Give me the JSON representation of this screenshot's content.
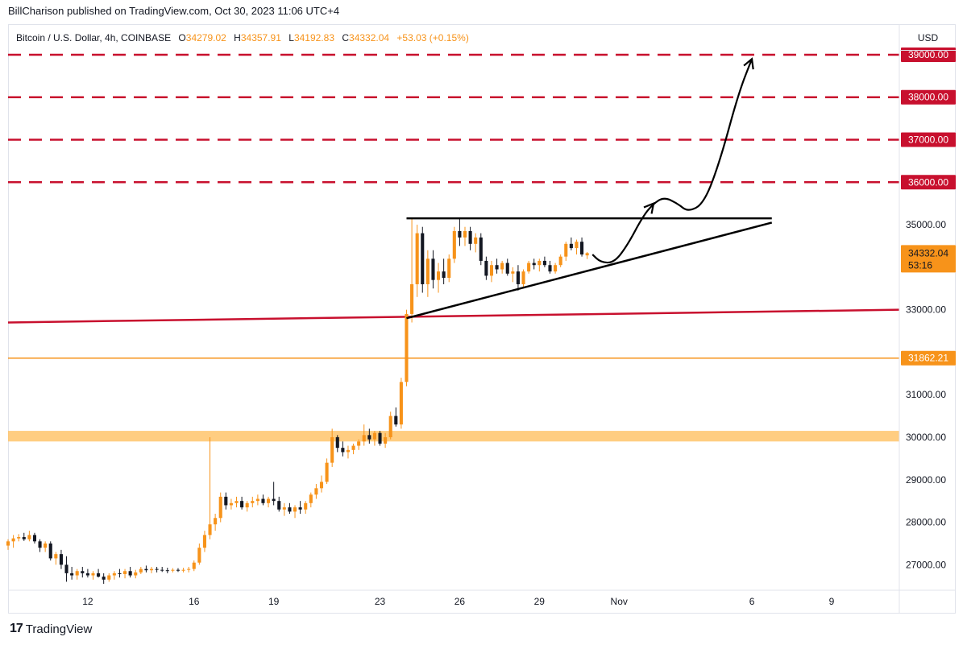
{
  "publisher_line": "BillCharison published on TradingView.com, Oct 30, 2023 11:06 UTC+4",
  "legend": {
    "symbol": "Bitcoin / U.S. Dollar, 4h, COINBASE",
    "open_label": "O",
    "open": "34279.02",
    "high_label": "H",
    "high": "34357.91",
    "low_label": "L",
    "low": "34192.83",
    "close_label": "C",
    "close": "34332.04",
    "change": "+53.03 (+0.15%)"
  },
  "currency": "USD",
  "footer": {
    "logo": "17",
    "brand": "TradingView"
  },
  "chart_data": {
    "type": "candlestick",
    "symbol": "BTCUSD",
    "timeframe": "4h",
    "y_axis_ticks": [
      27000,
      28000,
      29000,
      30000,
      31000,
      33000,
      35000
    ],
    "y_axis_label_format": "0.00",
    "ylim": [
      26400,
      39700
    ],
    "x_axis_ticks": [
      {
        "label": "12",
        "day": 12
      },
      {
        "label": "16",
        "day": 16
      },
      {
        "label": "19",
        "day": 19
      },
      {
        "label": "23",
        "day": 23
      },
      {
        "label": "26",
        "day": 26
      },
      {
        "label": "29",
        "day": 29
      },
      {
        "label": "Nov",
        "day": 32
      },
      {
        "label": "6",
        "day": 37
      },
      {
        "label": "9",
        "day": 40
      }
    ],
    "xlim_day": [
      9.0,
      42.55
    ],
    "last_price": {
      "value": 34332.04,
      "label": "34332.04",
      "countdown": "53:16",
      "color": "#f7931a"
    },
    "price_labels": [
      {
        "value": 39000,
        "label": "39000.00",
        "color": "#c8102e"
      },
      {
        "value": 38000,
        "label": "38000.00",
        "color": "#c8102e"
      },
      {
        "value": 37000,
        "label": "37000.00",
        "color": "#c8102e"
      },
      {
        "value": 36000,
        "label": "36000.00",
        "color": "#c8102e"
      },
      {
        "value": 31862.21,
        "label": "31862.21",
        "color": "#f7931a"
      }
    ],
    "horizontal_dashed_levels": [
      39000,
      38000,
      37000,
      36000
    ],
    "horizontal_line_orange": 31862.21,
    "support_zone": [
      29900,
      30150
    ],
    "red_trendline": {
      "from": [
        9.0,
        32700
      ],
      "to": [
        42.55,
        33000
      ]
    },
    "triangle": {
      "top": {
        "from": [
          24.0,
          35150
        ],
        "to": [
          37.75,
          35150
        ]
      },
      "bottom": {
        "from": [
          24.0,
          32800
        ],
        "to": [
          37.75,
          35050
        ]
      }
    },
    "projection_path": [
      [
        31.0,
        34300
      ],
      [
        31.3,
        34120
      ],
      [
        31.8,
        34100
      ],
      [
        32.3,
        34500
      ],
      [
        32.9,
        35200
      ],
      [
        33.3,
        35500
      ],
      [
        33.7,
        35650
      ],
      [
        34.2,
        35500
      ],
      [
        34.6,
        35300
      ],
      [
        35.2,
        35500
      ],
      [
        35.8,
        36500
      ],
      [
        36.5,
        38100
      ],
      [
        37.0,
        38900
      ]
    ],
    "candles": [
      {
        "d": 9.0,
        "o": 27450,
        "h": 27600,
        "l": 27350,
        "c": 27550
      },
      {
        "d": 9.2,
        "o": 27550,
        "h": 27700,
        "l": 27400,
        "c": 27620
      },
      {
        "d": 9.4,
        "o": 27620,
        "h": 27720,
        "l": 27550,
        "c": 27650
      },
      {
        "d": 9.6,
        "o": 27650,
        "h": 27750,
        "l": 27560,
        "c": 27600
      },
      {
        "d": 9.8,
        "o": 27600,
        "h": 27800,
        "l": 27550,
        "c": 27700
      },
      {
        "d": 10.0,
        "o": 27700,
        "h": 27750,
        "l": 27500,
        "c": 27550
      },
      {
        "d": 10.2,
        "o": 27550,
        "h": 27600,
        "l": 27300,
        "c": 27400
      },
      {
        "d": 10.4,
        "o": 27400,
        "h": 27550,
        "l": 27300,
        "c": 27500
      },
      {
        "d": 10.6,
        "o": 27500,
        "h": 27550,
        "l": 27100,
        "c": 27150
      },
      {
        "d": 10.8,
        "o": 27150,
        "h": 27300,
        "l": 27000,
        "c": 27250
      },
      {
        "d": 11.0,
        "o": 27250,
        "h": 27350,
        "l": 26900,
        "c": 27000
      },
      {
        "d": 11.2,
        "o": 27000,
        "h": 27200,
        "l": 26600,
        "c": 26800
      },
      {
        "d": 11.4,
        "o": 26800,
        "h": 26950,
        "l": 26650,
        "c": 26750
      },
      {
        "d": 11.6,
        "o": 26750,
        "h": 26900,
        "l": 26650,
        "c": 26850
      },
      {
        "d": 11.8,
        "o": 26850,
        "h": 26950,
        "l": 26700,
        "c": 26800
      },
      {
        "d": 12.0,
        "o": 26800,
        "h": 26900,
        "l": 26700,
        "c": 26750
      },
      {
        "d": 12.2,
        "o": 26750,
        "h": 26850,
        "l": 26650,
        "c": 26800
      },
      {
        "d": 12.4,
        "o": 26800,
        "h": 26900,
        "l": 26700,
        "c": 26720
      },
      {
        "d": 12.6,
        "o": 26720,
        "h": 26800,
        "l": 26550,
        "c": 26650
      },
      {
        "d": 12.8,
        "o": 26650,
        "h": 26800,
        "l": 26600,
        "c": 26750
      },
      {
        "d": 13.0,
        "o": 26750,
        "h": 26850,
        "l": 26650,
        "c": 26800
      },
      {
        "d": 13.2,
        "o": 26800,
        "h": 26900,
        "l": 26700,
        "c": 26780
      },
      {
        "d": 13.4,
        "o": 26780,
        "h": 26900,
        "l": 26680,
        "c": 26850
      },
      {
        "d": 13.6,
        "o": 26850,
        "h": 26950,
        "l": 26700,
        "c": 26750
      },
      {
        "d": 13.8,
        "o": 26750,
        "h": 26880,
        "l": 26680,
        "c": 26820
      },
      {
        "d": 14.0,
        "o": 26820,
        "h": 26950,
        "l": 26780,
        "c": 26900
      },
      {
        "d": 14.2,
        "o": 26900,
        "h": 26980,
        "l": 26820,
        "c": 26870
      },
      {
        "d": 14.4,
        "o": 26870,
        "h": 26950,
        "l": 26800,
        "c": 26900
      },
      {
        "d": 14.6,
        "o": 26900,
        "h": 26950,
        "l": 26820,
        "c": 26880
      },
      {
        "d": 14.8,
        "o": 26880,
        "h": 26950,
        "l": 26830,
        "c": 26870
      },
      {
        "d": 15.0,
        "o": 26870,
        "h": 26930,
        "l": 26800,
        "c": 26860
      },
      {
        "d": 15.2,
        "o": 26860,
        "h": 26920,
        "l": 26820,
        "c": 26880
      },
      {
        "d": 15.4,
        "o": 26880,
        "h": 26920,
        "l": 26830,
        "c": 26860
      },
      {
        "d": 15.6,
        "o": 26860,
        "h": 26930,
        "l": 26820,
        "c": 26880
      },
      {
        "d": 15.8,
        "o": 26880,
        "h": 26950,
        "l": 26820,
        "c": 26900
      },
      {
        "d": 16.0,
        "o": 26900,
        "h": 27100,
        "l": 26850,
        "c": 27050
      },
      {
        "d": 16.2,
        "o": 27050,
        "h": 27500,
        "l": 27000,
        "c": 27400
      },
      {
        "d": 16.4,
        "o": 27400,
        "h": 27800,
        "l": 27300,
        "c": 27700
      },
      {
        "d": 16.6,
        "o": 27700,
        "h": 30000,
        "l": 27600,
        "c": 27950
      },
      {
        "d": 16.8,
        "o": 27950,
        "h": 28200,
        "l": 27800,
        "c": 28100
      },
      {
        "d": 17.0,
        "o": 28100,
        "h": 28700,
        "l": 28000,
        "c": 28600
      },
      {
        "d": 17.2,
        "o": 28600,
        "h": 28700,
        "l": 28300,
        "c": 28400
      },
      {
        "d": 17.4,
        "o": 28400,
        "h": 28550,
        "l": 28300,
        "c": 28450
      },
      {
        "d": 17.6,
        "o": 28450,
        "h": 28600,
        "l": 28350,
        "c": 28500
      },
      {
        "d": 17.8,
        "o": 28500,
        "h": 28600,
        "l": 28300,
        "c": 28350
      },
      {
        "d": 18.0,
        "o": 28350,
        "h": 28500,
        "l": 28250,
        "c": 28450
      },
      {
        "d": 18.2,
        "o": 28450,
        "h": 28600,
        "l": 28350,
        "c": 28500
      },
      {
        "d": 18.4,
        "o": 28500,
        "h": 28650,
        "l": 28400,
        "c": 28550
      },
      {
        "d": 18.6,
        "o": 28550,
        "h": 28650,
        "l": 28400,
        "c": 28450
      },
      {
        "d": 18.8,
        "o": 28450,
        "h": 28600,
        "l": 28350,
        "c": 28550
      },
      {
        "d": 19.0,
        "o": 28550,
        "h": 28950,
        "l": 28400,
        "c": 28500
      },
      {
        "d": 19.2,
        "o": 28500,
        "h": 28600,
        "l": 28250,
        "c": 28300
      },
      {
        "d": 19.4,
        "o": 28300,
        "h": 28450,
        "l": 28150,
        "c": 28350
      },
      {
        "d": 19.6,
        "o": 28350,
        "h": 28450,
        "l": 28200,
        "c": 28250
      },
      {
        "d": 19.8,
        "o": 28250,
        "h": 28400,
        "l": 28100,
        "c": 28350
      },
      {
        "d": 20.0,
        "o": 28350,
        "h": 28500,
        "l": 28200,
        "c": 28300
      },
      {
        "d": 20.2,
        "o": 28300,
        "h": 28500,
        "l": 28200,
        "c": 28450
      },
      {
        "d": 20.4,
        "o": 28450,
        "h": 28700,
        "l": 28350,
        "c": 28650
      },
      {
        "d": 20.6,
        "o": 28650,
        "h": 28900,
        "l": 28550,
        "c": 28800
      },
      {
        "d": 20.8,
        "o": 28800,
        "h": 29100,
        "l": 28700,
        "c": 28950
      },
      {
        "d": 21.0,
        "o": 28950,
        "h": 29500,
        "l": 28900,
        "c": 29400
      },
      {
        "d": 21.2,
        "o": 29400,
        "h": 30200,
        "l": 29300,
        "c": 30000
      },
      {
        "d": 21.4,
        "o": 30000,
        "h": 30050,
        "l": 29650,
        "c": 29750
      },
      {
        "d": 21.6,
        "o": 29750,
        "h": 29900,
        "l": 29550,
        "c": 29650
      },
      {
        "d": 21.8,
        "o": 29650,
        "h": 29800,
        "l": 29500,
        "c": 29700
      },
      {
        "d": 22.0,
        "o": 29700,
        "h": 29850,
        "l": 29600,
        "c": 29800
      },
      {
        "d": 22.2,
        "o": 29800,
        "h": 29950,
        "l": 29700,
        "c": 29900
      },
      {
        "d": 22.4,
        "o": 29900,
        "h": 30300,
        "l": 29800,
        "c": 30050
      },
      {
        "d": 22.6,
        "o": 30050,
        "h": 30200,
        "l": 29850,
        "c": 29950
      },
      {
        "d": 22.8,
        "o": 29950,
        "h": 30150,
        "l": 29800,
        "c": 30100
      },
      {
        "d": 23.0,
        "o": 30100,
        "h": 30150,
        "l": 29800,
        "c": 29850
      },
      {
        "d": 23.2,
        "o": 29850,
        "h": 30100,
        "l": 29750,
        "c": 30000
      },
      {
        "d": 23.4,
        "o": 30000,
        "h": 30600,
        "l": 29950,
        "c": 30500
      },
      {
        "d": 23.6,
        "o": 30500,
        "h": 30700,
        "l": 30250,
        "c": 30300
      },
      {
        "d": 23.8,
        "o": 30300,
        "h": 31400,
        "l": 30200,
        "c": 31300
      },
      {
        "d": 24.0,
        "o": 31300,
        "h": 33000,
        "l": 31200,
        "c": 32900
      },
      {
        "d": 24.2,
        "o": 32900,
        "h": 35150,
        "l": 32700,
        "c": 33600
      },
      {
        "d": 24.4,
        "o": 33600,
        "h": 35000,
        "l": 33300,
        "c": 34800
      },
      {
        "d": 24.6,
        "o": 34800,
        "h": 34950,
        "l": 33400,
        "c": 33600
      },
      {
        "d": 24.8,
        "o": 33600,
        "h": 34400,
        "l": 33300,
        "c": 34200
      },
      {
        "d": 25.0,
        "o": 34200,
        "h": 34400,
        "l": 33500,
        "c": 33700
      },
      {
        "d": 25.2,
        "o": 33700,
        "h": 34100,
        "l": 33400,
        "c": 33900
      },
      {
        "d": 25.4,
        "o": 33900,
        "h": 34200,
        "l": 33600,
        "c": 33750
      },
      {
        "d": 25.6,
        "o": 33750,
        "h": 34300,
        "l": 33650,
        "c": 34200
      },
      {
        "d": 25.8,
        "o": 34200,
        "h": 34950,
        "l": 34100,
        "c": 34850
      },
      {
        "d": 26.0,
        "o": 34850,
        "h": 35150,
        "l": 34500,
        "c": 34700
      },
      {
        "d": 26.2,
        "o": 34700,
        "h": 34950,
        "l": 34500,
        "c": 34850
      },
      {
        "d": 26.4,
        "o": 34850,
        "h": 34950,
        "l": 34400,
        "c": 34550
      },
      {
        "d": 26.6,
        "o": 34550,
        "h": 34800,
        "l": 34350,
        "c": 34700
      },
      {
        "d": 26.8,
        "o": 34700,
        "h": 34800,
        "l": 34050,
        "c": 34150
      },
      {
        "d": 27.0,
        "o": 34150,
        "h": 34250,
        "l": 33700,
        "c": 33800
      },
      {
        "d": 27.2,
        "o": 33800,
        "h": 34150,
        "l": 33650,
        "c": 34050
      },
      {
        "d": 27.4,
        "o": 34050,
        "h": 34200,
        "l": 33850,
        "c": 33950
      },
      {
        "d": 27.6,
        "o": 33950,
        "h": 34150,
        "l": 33850,
        "c": 34100
      },
      {
        "d": 27.8,
        "o": 34100,
        "h": 34200,
        "l": 33800,
        "c": 33850
      },
      {
        "d": 28.0,
        "o": 33850,
        "h": 34000,
        "l": 33650,
        "c": 33900
      },
      {
        "d": 28.2,
        "o": 33900,
        "h": 34050,
        "l": 33450,
        "c": 33600
      },
      {
        "d": 28.4,
        "o": 33600,
        "h": 33950,
        "l": 33500,
        "c": 33900
      },
      {
        "d": 28.6,
        "o": 33900,
        "h": 34150,
        "l": 33850,
        "c": 34100
      },
      {
        "d": 28.8,
        "o": 34100,
        "h": 34200,
        "l": 33950,
        "c": 34050
      },
      {
        "d": 29.0,
        "o": 34050,
        "h": 34200,
        "l": 33900,
        "c": 34150
      },
      {
        "d": 29.2,
        "o": 34150,
        "h": 34250,
        "l": 34000,
        "c": 34050
      },
      {
        "d": 29.4,
        "o": 34050,
        "h": 34150,
        "l": 33850,
        "c": 33900
      },
      {
        "d": 29.6,
        "o": 33900,
        "h": 34100,
        "l": 33850,
        "c": 34050
      },
      {
        "d": 29.8,
        "o": 34050,
        "h": 34300,
        "l": 34000,
        "c": 34250
      },
      {
        "d": 30.0,
        "o": 34250,
        "h": 34600,
        "l": 34150,
        "c": 34550
      },
      {
        "d": 30.2,
        "o": 34550,
        "h": 34700,
        "l": 34400,
        "c": 34450
      },
      {
        "d": 30.4,
        "o": 34450,
        "h": 34650,
        "l": 34300,
        "c": 34600
      },
      {
        "d": 30.6,
        "o": 34600,
        "h": 34700,
        "l": 34250,
        "c": 34300
      },
      {
        "d": 30.8,
        "o": 34279,
        "h": 34358,
        "l": 34193,
        "c": 34332
      }
    ]
  },
  "colors": {
    "up": "#f7931a",
    "down": "#131722",
    "resistance": "#c8102e",
    "support_zone": "#ffc46b",
    "orange_line": "#f7931a",
    "drawing": "#000000",
    "axis_text": "#131722",
    "grid_border": "#e0e3eb"
  }
}
